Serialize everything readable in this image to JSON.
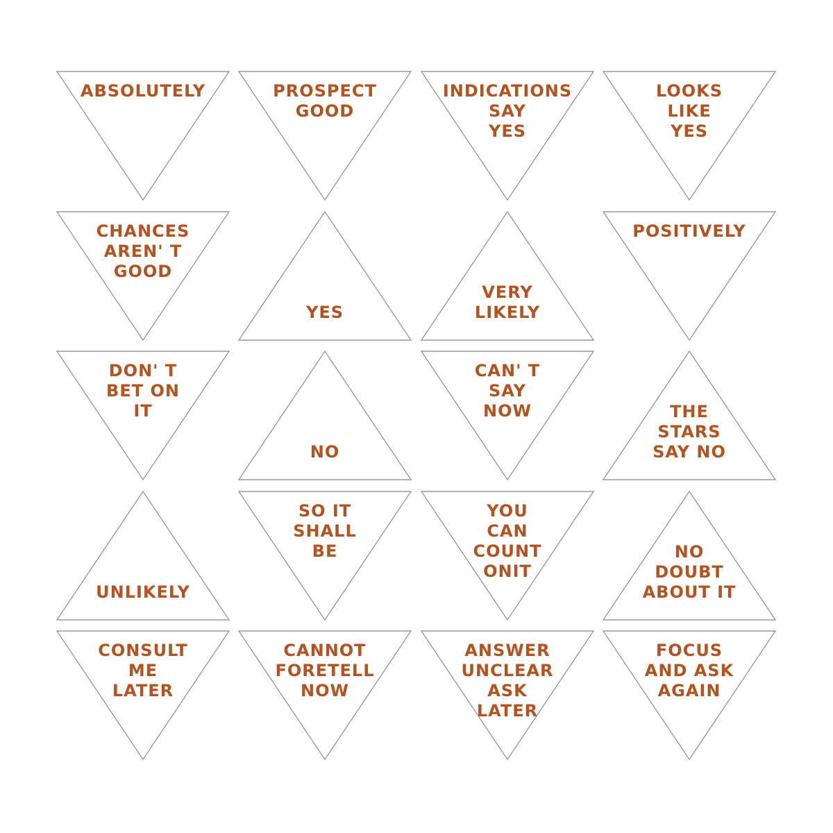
{
  "colors": {
    "text": "#b4531f",
    "outline": "#9a9a9a",
    "background": "#ffffff"
  },
  "triangles": [
    {
      "orientation": "down",
      "lines": [
        "ABSOLUTELY"
      ]
    },
    {
      "orientation": "down",
      "lines": [
        "PROSPECT",
        "GOOD"
      ]
    },
    {
      "orientation": "down",
      "lines": [
        "INDICATIONS",
        "SAY",
        "YES"
      ]
    },
    {
      "orientation": "down",
      "lines": [
        "LOOKS",
        "LIKE",
        "YES"
      ]
    },
    {
      "orientation": "down",
      "lines": [
        "CHANCES",
        "AREN' T",
        "GOOD"
      ]
    },
    {
      "orientation": "up",
      "lines": [
        "YES"
      ]
    },
    {
      "orientation": "up",
      "lines": [
        "VERY",
        "LIKELY"
      ]
    },
    {
      "orientation": "down",
      "lines": [
        "POSITIVELY"
      ]
    },
    {
      "orientation": "down",
      "lines": [
        "DON' T",
        "BET ON",
        "IT"
      ]
    },
    {
      "orientation": "up",
      "lines": [
        "NO"
      ]
    },
    {
      "orientation": "down",
      "lines": [
        "CAN' T",
        "SAY",
        "NOW"
      ]
    },
    {
      "orientation": "up",
      "lines": [
        "THE",
        "STARS",
        "SAY  NO"
      ]
    },
    {
      "orientation": "up",
      "lines": [
        "UNLIKELY"
      ]
    },
    {
      "orientation": "down",
      "lines": [
        "SO  IT",
        "SHALL",
        "BE"
      ]
    },
    {
      "orientation": "down",
      "lines": [
        "YOU",
        "CAN",
        "COUNT",
        "ONIT"
      ]
    },
    {
      "orientation": "up",
      "lines": [
        "NO",
        "DOUBT",
        "ABOUT  IT"
      ]
    },
    {
      "orientation": "down",
      "lines": [
        "CONSULT",
        "ME",
        "LATER"
      ]
    },
    {
      "orientation": "down",
      "lines": [
        "CANNOT",
        "FORETELL",
        "NOW"
      ]
    },
    {
      "orientation": "down",
      "lines": [
        "ANSWER",
        "UNCLEAR",
        "ASK",
        "LATER"
      ]
    },
    {
      "orientation": "down",
      "lines": [
        "FOCUS",
        "AND ASK",
        "AGAIN"
      ]
    }
  ]
}
